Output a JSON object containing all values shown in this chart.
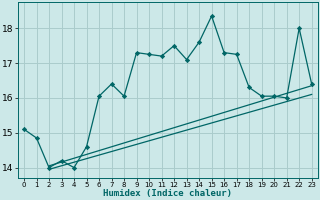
{
  "xlabel": "Humidex (Indice chaleur)",
  "ylabel": "",
  "bg_color": "#cce8e8",
  "line_color": "#006666",
  "grid_color": "#aacccc",
  "xlim": [
    -0.5,
    23.5
  ],
  "ylim": [
    13.7,
    18.75
  ],
  "yticks": [
    14,
    15,
    16,
    17,
    18
  ],
  "xticks": [
    0,
    1,
    2,
    3,
    4,
    5,
    6,
    7,
    8,
    9,
    10,
    11,
    12,
    13,
    14,
    15,
    16,
    17,
    18,
    19,
    20,
    21,
    22,
    23
  ],
  "curve_x": [
    0,
    1,
    2,
    3,
    4,
    5,
    6,
    7,
    8,
    9,
    10,
    11,
    12,
    13,
    14,
    15,
    16,
    17,
    18,
    19,
    20,
    21,
    22,
    23
  ],
  "curve_y": [
    15.1,
    14.85,
    14.0,
    14.2,
    14.0,
    14.6,
    16.05,
    16.4,
    16.05,
    17.3,
    17.25,
    17.2,
    17.5,
    17.1,
    17.6,
    18.35,
    17.3,
    17.25,
    16.3,
    16.05,
    16.05,
    16.0,
    18.0,
    16.4
  ],
  "line1_x": [
    2,
    23
  ],
  "line1_y": [
    13.95,
    16.1
  ],
  "line2_x": [
    2,
    23
  ],
  "line2_y": [
    14.05,
    16.35
  ]
}
